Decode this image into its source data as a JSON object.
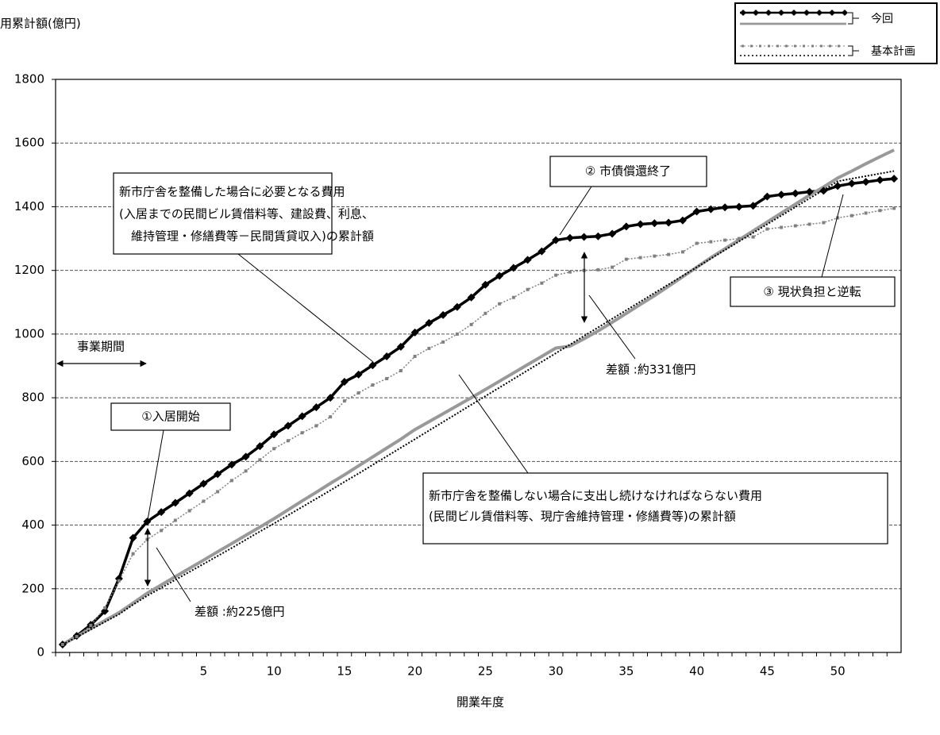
{
  "chart_data": {
    "type": "line",
    "y_label": "用累計額(億円)",
    "x_label": "開業年度",
    "ylim": [
      0,
      1800
    ],
    "yticks": [
      0,
      200,
      400,
      600,
      800,
      1000,
      1200,
      1400,
      1600,
      1800
    ],
    "grid": true,
    "legend": "upper right",
    "categories": [
      null,
      null,
      null,
      null,
      null,
      null,
      null,
      null,
      null,
      null,
      5,
      null,
      null,
      null,
      null,
      10,
      null,
      null,
      null,
      null,
      15,
      null,
      null,
      null,
      null,
      20,
      null,
      null,
      null,
      null,
      25,
      null,
      null,
      null,
      null,
      30,
      null,
      null,
      null,
      null,
      35,
      null,
      null,
      null,
      null,
      40,
      null,
      null,
      null,
      null,
      45,
      null,
      null,
      null,
      null,
      50,
      null,
      null,
      null,
      null
    ],
    "series_groups": [
      {
        "name": "今回",
        "series": [
          {
            "color": "#000000",
            "marker": "diamond",
            "dash": "solid",
            "values": [
              25,
              52,
              87,
              130,
              232,
              360,
              411,
              441,
              470,
              500,
              530,
              560,
              590,
              615,
              648,
              685,
              712,
              742,
              770,
              800,
              850,
              873,
              902,
              930,
              960,
              1005,
              1035,
              1060,
              1085,
              1115,
              1155,
              1183,
              1208,
              1233,
              1260,
              1295,
              1302,
              1305,
              1307,
              1315,
              1338,
              1345,
              1348,
              1350,
              1357,
              1385,
              1392,
              1398,
              1400,
              1403,
              1432,
              1438,
              1442,
              1447,
              1450,
              1465,
              1473,
              1478,
              1484,
              1488
            ]
          },
          {
            "color": "#999999",
            "marker": "none",
            "dash": "solid",
            "values": [
              25,
              50,
              75,
              100,
              125,
              155,
              186,
              212,
              238,
              264,
              290,
              316,
              342,
              368,
              394,
              420,
              448,
              476,
              503,
              531,
              558,
              586,
              614,
              642,
              670,
              700,
              725,
              750,
              775,
              800,
              826,
              852,
              878,
              904,
              930,
              956,
              962,
              985,
              1010,
              1037,
              1065,
              1093,
              1121,
              1150,
              1180,
              1210,
              1240,
              1268,
              1296,
              1324,
              1352,
              1380,
              1408,
              1436,
              1462,
              1490,
              1512,
              1535,
              1557,
              1578
            ]
          }
        ]
      },
      {
        "name": "基本計画",
        "series": [
          {
            "color": "#808080",
            "marker": "square",
            "dash": "dotted",
            "values": [
              25,
              50,
              85,
              140,
              225,
              310,
              355,
              383,
              415,
              445,
              475,
              505,
              540,
              570,
              605,
              640,
              665,
              690,
              712,
              740,
              790,
              815,
              840,
              860,
              885,
              930,
              955,
              975,
              1000,
              1030,
              1065,
              1095,
              1115,
              1140,
              1160,
              1185,
              1195,
              1200,
              1202,
              1210,
              1235,
              1240,
              1245,
              1250,
              1258,
              1285,
              1290,
              1295,
              1300,
              1305,
              1330,
              1335,
              1340,
              1345,
              1350,
              1365,
              1372,
              1380,
              1388,
              1395
            ]
          },
          {
            "color": "#000000",
            "marker": "none",
            "dash": "dotted",
            "values": [
              25,
              48,
              72,
              96,
              120,
              150,
              178,
              203,
              228,
              253,
              278,
              303,
              328,
              354,
              380,
              405,
              431,
              457,
              483,
              509,
              536,
              562,
              589,
              616,
              643,
              670,
              697,
              724,
              751,
              778,
              805,
              832,
              859,
              886,
              913,
              940,
              967,
              994,
              1021,
              1048,
              1075,
              1102,
              1129,
              1156,
              1183,
              1210,
              1237,
              1264,
              1291,
              1318,
              1345,
              1372,
              1399,
              1426,
              1453,
              1480,
              1488,
              1496,
              1504,
              1512
            ]
          }
        ]
      }
    ],
    "annotations": [
      {
        "lines": [
          "新市庁舎を整備した場合に必要となる費用",
          "(入居までの民間ビル賃借料等、建設費、利息、",
          "　維持管理・修繕費等－民間賃貸収入)の累計額"
        ]
      },
      {
        "lines": [
          "② 市債償還終了"
        ]
      },
      {
        "lines": [
          "③ 現状負担と逆転"
        ]
      },
      {
        "lines": [
          "①入居開始"
        ]
      },
      {
        "lines": [
          "事業期間"
        ]
      },
      {
        "lines": [
          "差額 :約225億円"
        ]
      },
      {
        "lines": [
          "差額 :約331億円"
        ]
      },
      {
        "lines": [
          "新市庁舎を整備しない場合に支出し続けなければならない費用",
          "(民間ビル賃借料等、現庁舎維持管理・修繕費等)の累計額"
        ]
      }
    ]
  }
}
